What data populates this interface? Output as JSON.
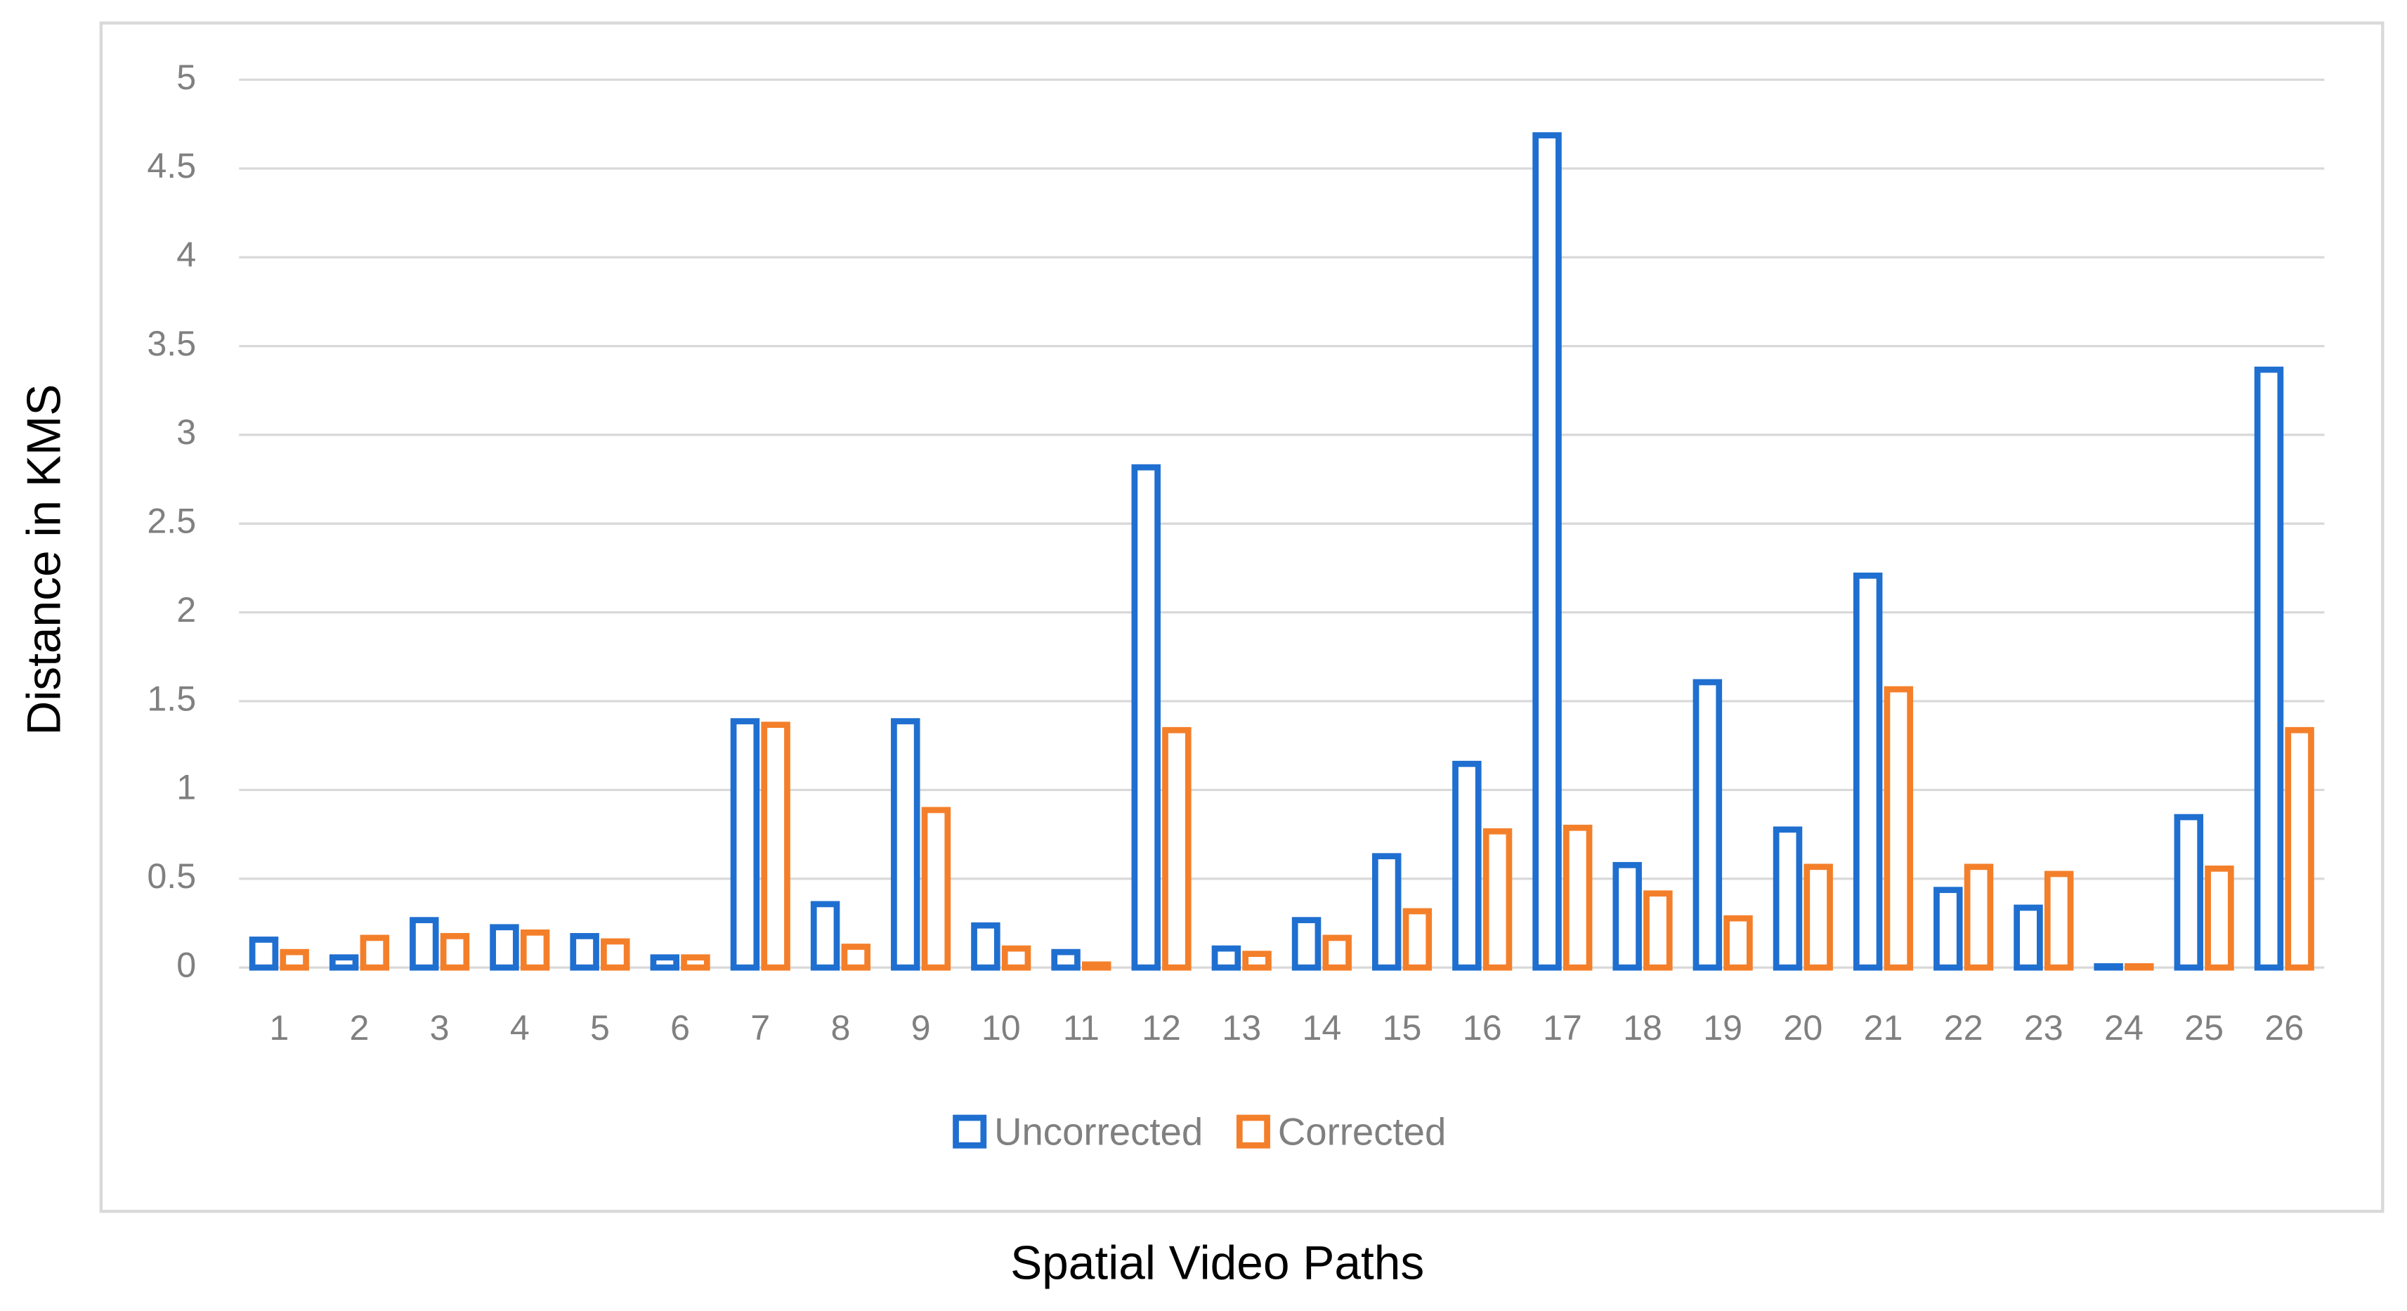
{
  "chart_data": {
    "type": "bar",
    "x_label": "Spatial Video Paths",
    "y_label": "Distance in KMS",
    "categories": [
      "1",
      "2",
      "3",
      "4",
      "5",
      "6",
      "7",
      "8",
      "9",
      "10",
      "11",
      "12",
      "13",
      "14",
      "15",
      "16",
      "17",
      "18",
      "19",
      "20",
      "21",
      "22",
      "23",
      "24",
      "25",
      "26"
    ],
    "series": [
      {
        "name": "Uncorrected",
        "color": "#1f6fd0",
        "values": [
          0.17,
          0.07,
          0.28,
          0.24,
          0.19,
          0.07,
          1.4,
          0.37,
          1.4,
          0.25,
          0.1,
          2.83,
          0.12,
          0.28,
          0.64,
          1.16,
          4.7,
          0.59,
          1.62,
          0.79,
          2.22,
          0.45,
          0.35,
          0.02,
          0.86,
          3.38
        ]
      },
      {
        "name": "Corrected",
        "color": "#f47f2a",
        "values": [
          0.1,
          0.18,
          0.19,
          0.21,
          0.16,
          0.07,
          1.38,
          0.13,
          0.9,
          0.12,
          0.03,
          1.35,
          0.09,
          0.18,
          0.33,
          0.78,
          0.8,
          0.43,
          0.29,
          0.58,
          1.58,
          0.58,
          0.54,
          0.02,
          0.57,
          1.35
        ]
      }
    ],
    "ylim": [
      0,
      5
    ],
    "yticks": [
      0,
      0.5,
      1,
      1.5,
      2,
      2.5,
      3,
      3.5,
      4,
      4.5,
      5
    ],
    "grid": true,
    "legend": "bottom"
  }
}
